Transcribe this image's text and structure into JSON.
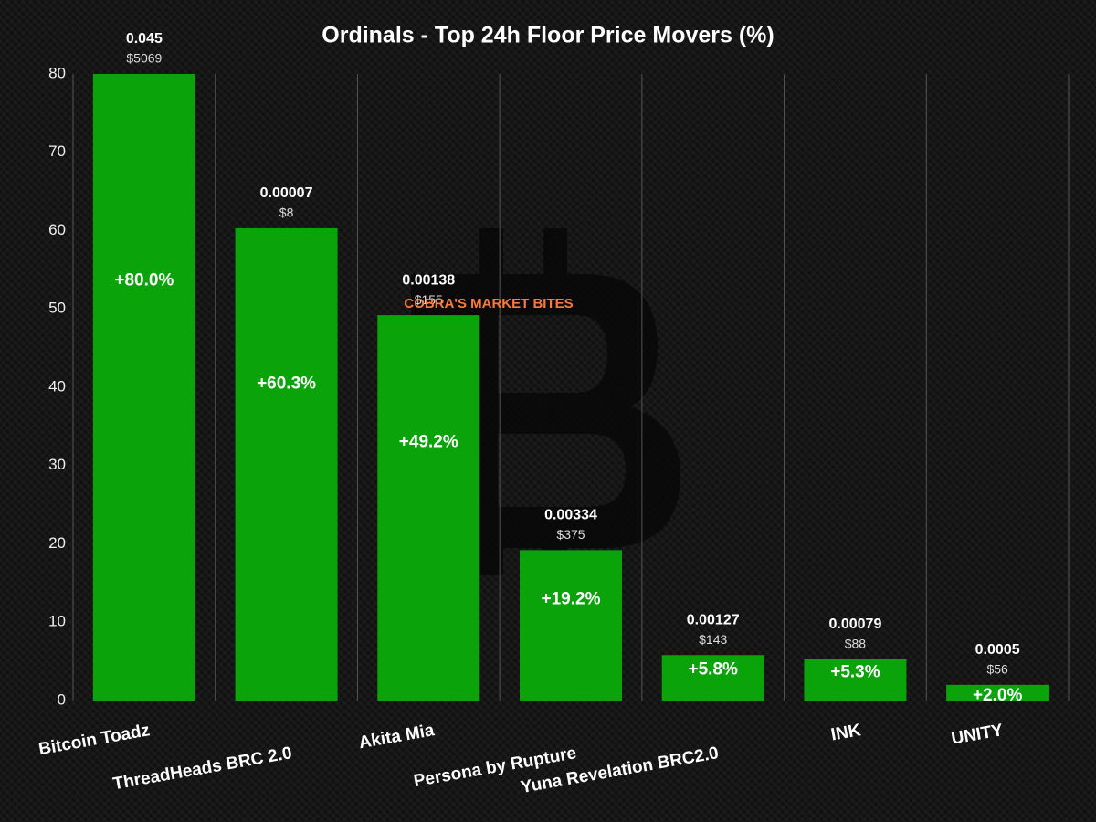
{
  "chart_data": {
    "type": "bar",
    "title": "Ordinals - Top 24h Floor Price Movers (%)",
    "watermark": "COBRA'S MARKET BITES",
    "categories": [
      "Bitcoin Toadz",
      "ThreadHeads BRC 2.0",
      "Akita Mia",
      "Persona by Rupture",
      "Yuna Revelation BRC2.0",
      "INK",
      "UNITY"
    ],
    "values": [
      80.0,
      60.3,
      49.2,
      19.2,
      5.8,
      5.3,
      2.0
    ],
    "value_labels": [
      "+80.0%",
      "+60.3%",
      "+49.2%",
      "+19.2%",
      "+5.8%",
      "+5.3%",
      "+2.0%"
    ],
    "floor_btc": [
      "0.045",
      "0.00007",
      "0.00138",
      "0.00334",
      "0.00127",
      "0.00079",
      "0.0005"
    ],
    "floor_usd": [
      "$5069",
      "$8",
      "$155",
      "$375",
      "$143",
      "$88",
      "$56"
    ],
    "color": "#0aa30a",
    "ylim": [
      0,
      80
    ],
    "yticks": [
      0,
      10,
      20,
      30,
      40,
      50,
      60,
      70,
      80
    ],
    "grid": true
  }
}
